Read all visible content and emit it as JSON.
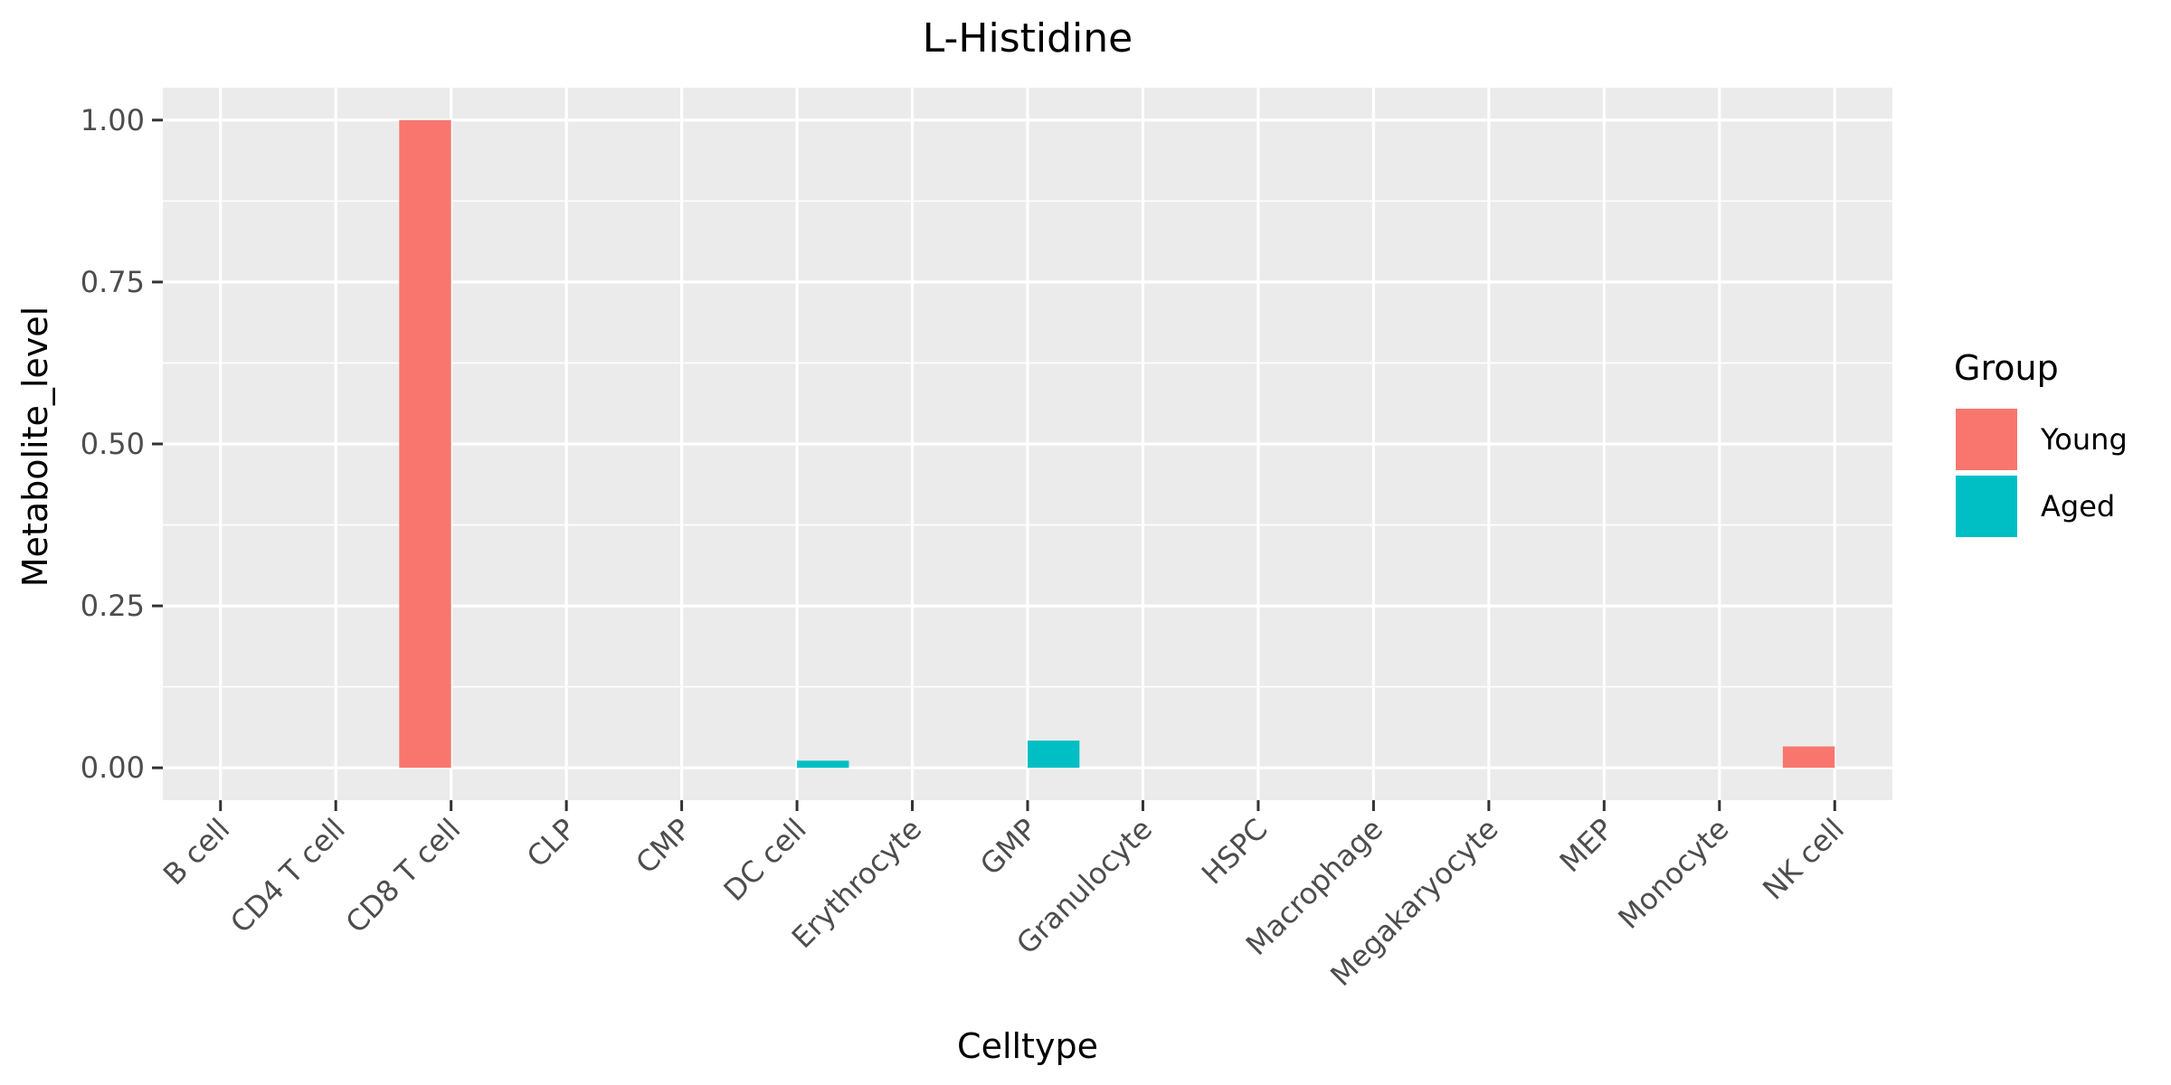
{
  "chart_data": {
    "type": "bar",
    "title": "L-Histidine",
    "xlabel": "Celltype",
    "ylabel": "Metabolite_level",
    "categories": [
      "B cell",
      "CD4 T cell",
      "CD8 T cell",
      "CLP",
      "CMP",
      "DC cell",
      "Erythrocyte",
      "GMP",
      "Granulocyte",
      "HSPC",
      "Macrophage",
      "Megakaryocyte",
      "MEP",
      "Monocyte",
      "NK cell"
    ],
    "series": [
      {
        "name": "Young",
        "color": "#F8766D",
        "values": [
          0,
          0,
          1.0,
          0,
          0,
          0,
          0,
          0,
          0,
          0,
          0,
          0,
          0,
          0,
          0.033
        ]
      },
      {
        "name": "Aged",
        "color": "#00BFC4",
        "values": [
          0,
          0,
          0,
          0,
          0,
          0.011,
          0,
          0.042,
          0,
          0,
          0,
          0,
          0,
          0,
          0
        ]
      }
    ],
    "ylim": [
      -0.05,
      1.05
    ],
    "yticks": [
      0.0,
      0.25,
      0.5,
      0.75,
      1.0
    ],
    "ytick_labels": [
      "0.00",
      "0.25",
      "0.50",
      "0.75",
      "1.00"
    ],
    "grid": true,
    "legend": {
      "title": "Group",
      "position": "right"
    }
  }
}
